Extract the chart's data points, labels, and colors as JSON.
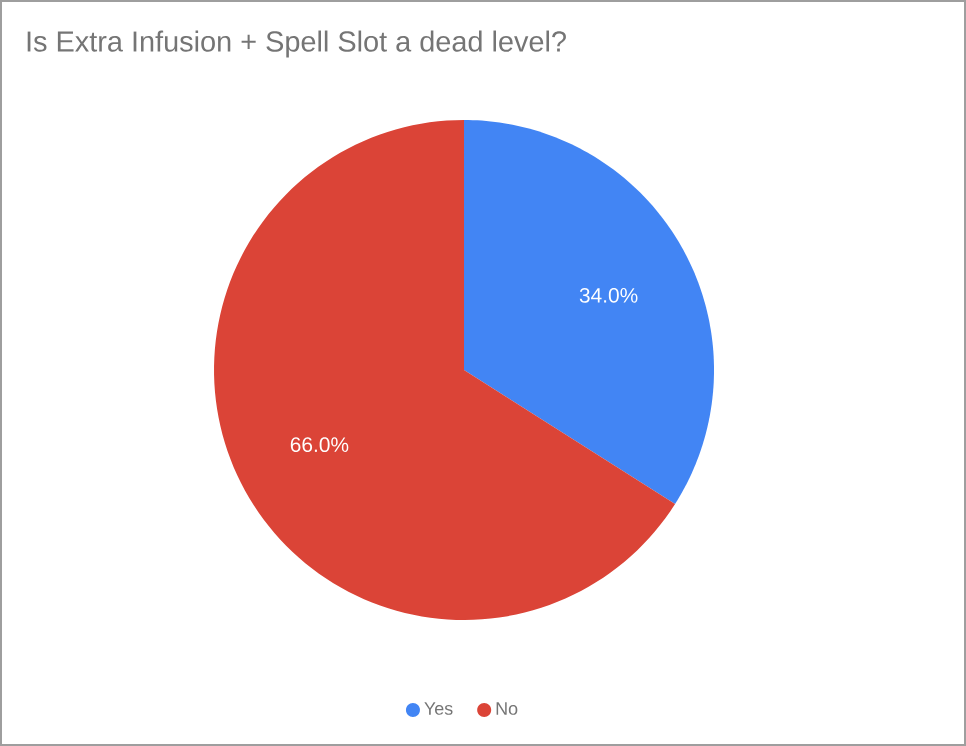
{
  "chart_data": {
    "type": "pie",
    "title": "Is Extra Infusion + Spell Slot a dead level?",
    "categories": [
      "Yes",
      "No"
    ],
    "values": [
      34,
      66
    ],
    "colors": [
      "#4285f4",
      "#db4437"
    ],
    "value_labels": [
      "34.0%",
      "66.0%"
    ],
    "legend": "bottom"
  }
}
